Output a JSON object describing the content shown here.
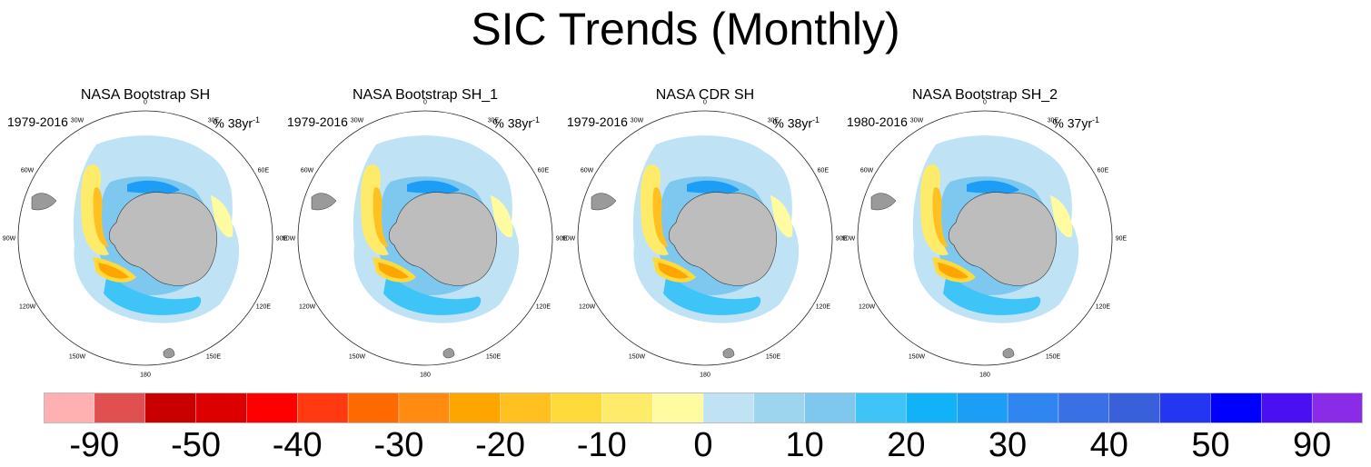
{
  "title": "SIC Trends (Monthly)",
  "panels": [
    {
      "title": "NASA Bootstrap SH",
      "period": "1979-2016",
      "units_prefix": "% 38yr",
      "units_exp": "-1"
    },
    {
      "title": "NASA Bootstrap SH_1",
      "period": "1979-2016",
      "units_prefix": "% 38yr",
      "units_exp": "-1"
    },
    {
      "title": "NASA CDR SH",
      "period": "1979-2016",
      "units_prefix": "% 38yr",
      "units_exp": "-1"
    },
    {
      "title": "NASA Bootstrap SH_2",
      "period": "1980-2016",
      "units_prefix": "% 37yr",
      "units_exp": "-1"
    }
  ],
  "longitude_labels": [
    "0",
    "30E",
    "60E",
    "90E",
    "120E",
    "150E",
    "180",
    "150W",
    "120W",
    "90W",
    "60W",
    "30W"
  ],
  "colorbar": {
    "labels": [
      "-90",
      "-50",
      "-40",
      "-30",
      "-20",
      "-10",
      "0",
      "10",
      "20",
      "30",
      "40",
      "50",
      "90"
    ],
    "colors": [
      "#FFB0B0",
      "#E05050",
      "#C80000",
      "#DD0000",
      "#FF0000",
      "#FF3A10",
      "#FF6A00",
      "#FF8C10",
      "#FFA500",
      "#FFC020",
      "#FFDA3A",
      "#FFEB6A",
      "#FFFBA0",
      "#BFE3F5",
      "#9ED5EE",
      "#7EC8F0",
      "#3EC4F6",
      "#12B2F8",
      "#1C9EF6",
      "#2F86F0",
      "#3A70E6",
      "#3860DA",
      "#2436F2",
      "#0000FF",
      "#4A10F2",
      "#8A2BE8"
    ]
  }
}
